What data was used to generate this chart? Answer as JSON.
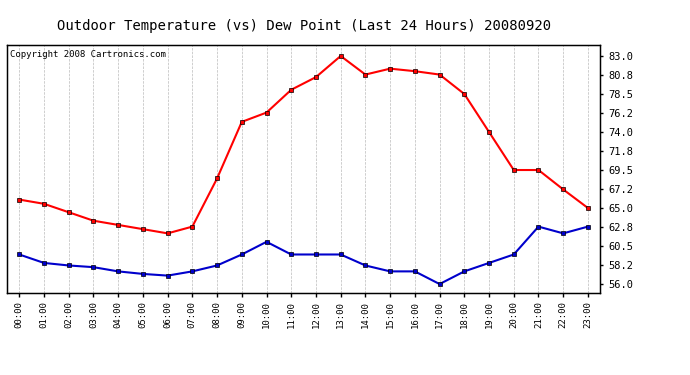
{
  "title": "Outdoor Temperature (vs) Dew Point (Last 24 Hours) 20080920",
  "copyright": "Copyright 2008 Cartronics.com",
  "hours": [
    0,
    1,
    2,
    3,
    4,
    5,
    6,
    7,
    8,
    9,
    10,
    11,
    12,
    13,
    14,
    15,
    16,
    17,
    18,
    19,
    20,
    21,
    22,
    23
  ],
  "hour_labels": [
    "00:00",
    "01:00",
    "02:00",
    "03:00",
    "04:00",
    "05:00",
    "06:00",
    "07:00",
    "08:00",
    "09:00",
    "10:00",
    "11:00",
    "12:00",
    "13:00",
    "14:00",
    "15:00",
    "16:00",
    "17:00",
    "18:00",
    "19:00",
    "20:00",
    "21:00",
    "22:00",
    "23:00"
  ],
  "temp": [
    66.0,
    65.5,
    64.5,
    63.5,
    63.0,
    62.5,
    62.0,
    62.8,
    68.5,
    75.2,
    76.3,
    79.0,
    80.5,
    83.0,
    80.8,
    81.5,
    81.2,
    80.8,
    78.5,
    74.0,
    69.5,
    69.5,
    67.2,
    65.0
  ],
  "dewpoint": [
    59.5,
    58.5,
    58.2,
    58.0,
    57.5,
    57.2,
    57.0,
    57.5,
    58.2,
    59.5,
    61.0,
    59.5,
    59.5,
    59.5,
    58.2,
    57.5,
    57.5,
    56.0,
    57.5,
    58.5,
    59.5,
    62.8,
    62.0,
    62.8
  ],
  "temp_color": "#ff0000",
  "dew_color": "#0000cc",
  "marker": "s",
  "marker_size": 3,
  "line_width": 1.5,
  "ylim_min": 55.0,
  "ylim_max": 84.3,
  "yticks": [
    56.0,
    58.2,
    60.5,
    62.8,
    65.0,
    67.2,
    69.5,
    71.8,
    74.0,
    76.2,
    78.5,
    80.8,
    83.0
  ],
  "bg_color": "#ffffff",
  "grid_color": "#aaaaaa",
  "title_fontsize": 10,
  "copyright_fontsize": 6.5
}
